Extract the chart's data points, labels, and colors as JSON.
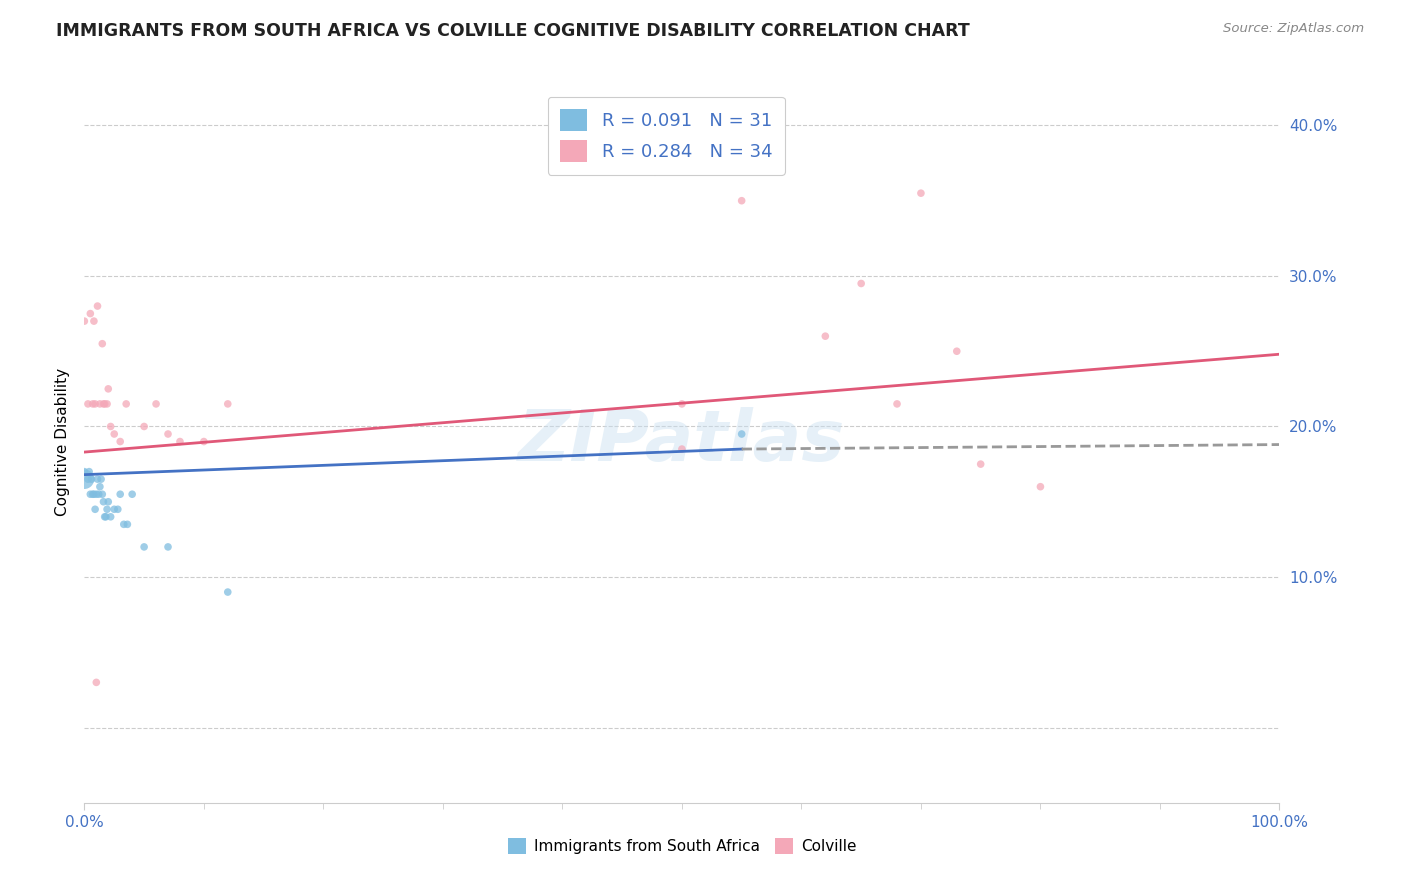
{
  "title": "IMMIGRANTS FROM SOUTH AFRICA VS COLVILLE COGNITIVE DISABILITY CORRELATION CHART",
  "source": "Source: ZipAtlas.com",
  "ylabel": "Cognitive Disability",
  "xlim": [
    0,
    1.0
  ],
  "ylim": [
    -0.05,
    0.43
  ],
  "x_tick_left": 0.0,
  "x_tick_right": 1.0,
  "x_tick_left_label": "0.0%",
  "x_tick_right_label": "100.0%",
  "y_ticks": [
    0.0,
    0.1,
    0.2,
    0.3,
    0.4
  ],
  "y_tick_labels": [
    "",
    "10.0%",
    "20.0%",
    "30.0%",
    "40.0%"
  ],
  "legend_entries": [
    {
      "label": "R = 0.091   N = 31",
      "color": "#a8c8f0"
    },
    {
      "label": "R = 0.284   N = 34",
      "color": "#f0a8b8"
    }
  ],
  "legend_bottom_labels": [
    "Immigrants from South Africa",
    "Colville"
  ],
  "blue_color": "#7fbde0",
  "pink_color": "#f4a8b8",
  "blue_line_color": "#4472c4",
  "pink_line_color": "#e05878",
  "dashed_line_color": "#999999",
  "watermark": "ZIPatlas",
  "blue_scatter_x": [
    0.0,
    0.0,
    0.003,
    0.004,
    0.005,
    0.006,
    0.007,
    0.008,
    0.009,
    0.01,
    0.011,
    0.012,
    0.013,
    0.014,
    0.015,
    0.016,
    0.017,
    0.018,
    0.019,
    0.02,
    0.022,
    0.025,
    0.028,
    0.03,
    0.033,
    0.036,
    0.04,
    0.05,
    0.07,
    0.12,
    0.55
  ],
  "blue_scatter_y": [
    0.165,
    0.17,
    0.165,
    0.17,
    0.155,
    0.165,
    0.155,
    0.155,
    0.145,
    0.155,
    0.165,
    0.155,
    0.16,
    0.165,
    0.155,
    0.15,
    0.14,
    0.14,
    0.145,
    0.15,
    0.14,
    0.145,
    0.145,
    0.155,
    0.135,
    0.135,
    0.155,
    0.12,
    0.12,
    0.09,
    0.195
  ],
  "blue_scatter_size": [
    200,
    30,
    30,
    30,
    30,
    30,
    30,
    30,
    30,
    30,
    30,
    30,
    30,
    30,
    30,
    30,
    30,
    30,
    30,
    30,
    30,
    30,
    30,
    30,
    30,
    30,
    30,
    30,
    30,
    30,
    30
  ],
  "pink_scatter_x": [
    0.0,
    0.003,
    0.005,
    0.007,
    0.008,
    0.009,
    0.011,
    0.013,
    0.015,
    0.016,
    0.017,
    0.019,
    0.02,
    0.022,
    0.025,
    0.03,
    0.035,
    0.05,
    0.06,
    0.07,
    0.08,
    0.1,
    0.12,
    0.5,
    0.55,
    0.62,
    0.65,
    0.68,
    0.7,
    0.73,
    0.5,
    0.75,
    0.8,
    0.01
  ],
  "pink_scatter_y": [
    0.27,
    0.215,
    0.275,
    0.215,
    0.27,
    0.215,
    0.28,
    0.215,
    0.255,
    0.215,
    0.215,
    0.215,
    0.225,
    0.2,
    0.195,
    0.19,
    0.215,
    0.2,
    0.215,
    0.195,
    0.19,
    0.19,
    0.215,
    0.215,
    0.35,
    0.26,
    0.295,
    0.215,
    0.355,
    0.25,
    0.185,
    0.175,
    0.16,
    0.03
  ],
  "pink_scatter_size": [
    30,
    30,
    30,
    30,
    30,
    30,
    30,
    30,
    30,
    30,
    30,
    30,
    30,
    30,
    30,
    30,
    30,
    30,
    30,
    30,
    30,
    30,
    30,
    30,
    30,
    30,
    30,
    30,
    30,
    30,
    30,
    30,
    30,
    30
  ],
  "blue_line_x": [
    0.0,
    0.55
  ],
  "blue_line_y": [
    0.168,
    0.185
  ],
  "pink_line_x": [
    0.0,
    1.0
  ],
  "pink_line_y": [
    0.183,
    0.248
  ],
  "dashed_line_x": [
    0.55,
    1.0
  ],
  "dashed_line_y": [
    0.185,
    0.188
  ]
}
